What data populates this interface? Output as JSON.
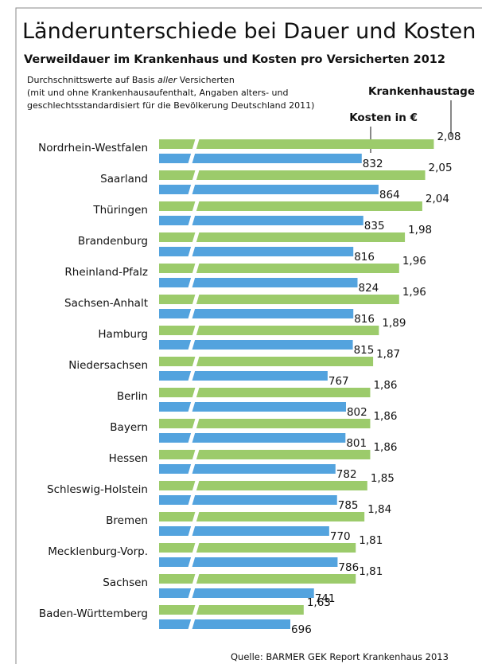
{
  "title": "Länderunterschiede bei Dauer und Kosten",
  "subtitle": "Verweildauer im Krankenhaus und Kosten pro Versicherten 2012",
  "note": [
    "Durchschnittswerte auf Basis",
    "aller",
    "Versicherten",
    "(mit und ohne Krankenhausaufenthalt, Angaben alters- und",
    "geschlechtsstandardisiert für die Bevölkerung Deutschland 2011)"
  ],
  "source": "Quelle: BARMER GEK Report Krankenhaus 2013",
  "chart_data": {
    "type": "hbar",
    "categories": [
      "Nordrhein-Westfalen",
      "Saarland",
      "Thüringen",
      "Brandenburg",
      "Rheinland-Pfalz",
      "Sachsen-Anhalt",
      "Hamburg",
      "Niedersachsen",
      "Berlin",
      "Bayern",
      "Hessen",
      "Schleswig-Holstein",
      "Bremen",
      "Mecklenburg-Vorp.",
      "Sachsen",
      "Baden-Württemberg"
    ],
    "series": [
      {
        "name": "Krankenhaustage",
        "color": "#9ccb6b",
        "axis": "x",
        "values": [
          2.08,
          2.05,
          2.04,
          1.98,
          1.96,
          1.96,
          1.89,
          1.87,
          1.86,
          1.86,
          1.86,
          1.85,
          1.84,
          1.81,
          1.81,
          1.63
        ],
        "value_labels": [
          "2,08",
          "2,05",
          "2,04",
          "1,98",
          "1,96",
          "1,96",
          "1,89",
          "1,87",
          "1,86",
          "1,86",
          "1,86",
          "1,85",
          "1,84",
          "1,81",
          "1,81",
          "1,63"
        ]
      },
      {
        "name": "Kosten in €",
        "color": "#53a3de",
        "axis": "x2",
        "values": [
          832,
          864,
          835,
          816,
          824,
          816,
          815,
          767,
          802,
          801,
          782,
          785,
          770,
          786,
          741,
          696
        ]
      }
    ],
    "xlim": [
      1.13,
      2.23
    ],
    "x2lim": [
      446,
      1052
    ],
    "axis_break": true
  }
}
